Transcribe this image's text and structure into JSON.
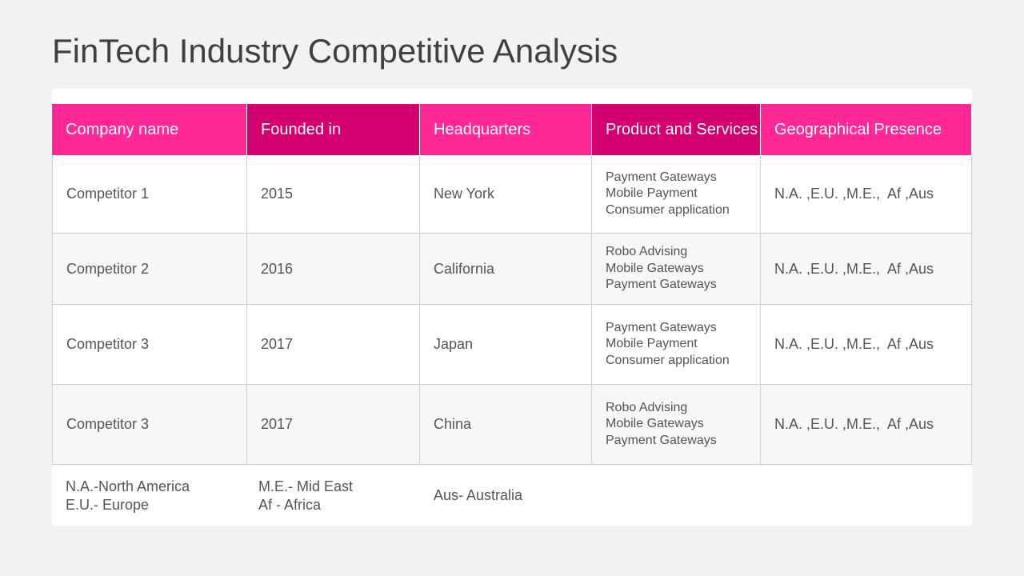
{
  "title": "FinTech Industry Competitive Analysis",
  "table": {
    "headers": [
      "Company name",
      "Founded in",
      "Headquarters",
      "Product and Services",
      "Geographical Presence"
    ],
    "rows": [
      [
        "Competitor 1",
        "2015",
        "New York",
        [
          "Payment Gateways",
          "Mobile Payment",
          "Consumer application"
        ],
        "N.A. ,E.U. ,M.E.,  Af ,Aus"
      ],
      [
        "Competitor 2",
        "2016",
        "California",
        [
          "Robo Advising",
          "Mobile Gateways",
          "Payment Gateways"
        ],
        "N.A. ,E.U. ,M.E.,  Af ,Aus"
      ],
      [
        "Competitor 3",
        "2017",
        "Japan",
        [
          "Payment Gateways",
          "Mobile Payment",
          "Consumer application"
        ],
        "N.A. ,E.U. ,M.E.,  Af ,Aus"
      ],
      [
        "Competitor 3",
        "2017",
        "China",
        [
          "Robo Advising",
          "Mobile Gateways",
          "Payment Gateways"
        ],
        "N.A. ,E.U. ,M.E.,  Af ,Aus"
      ]
    ],
    "footnotes": [
      [
        "N.A.-North America",
        "E.U.- Europe"
      ],
      [
        "M.E.- Mid East",
        "Af - Africa"
      ],
      [
        "Aus- Australia"
      ]
    ]
  }
}
